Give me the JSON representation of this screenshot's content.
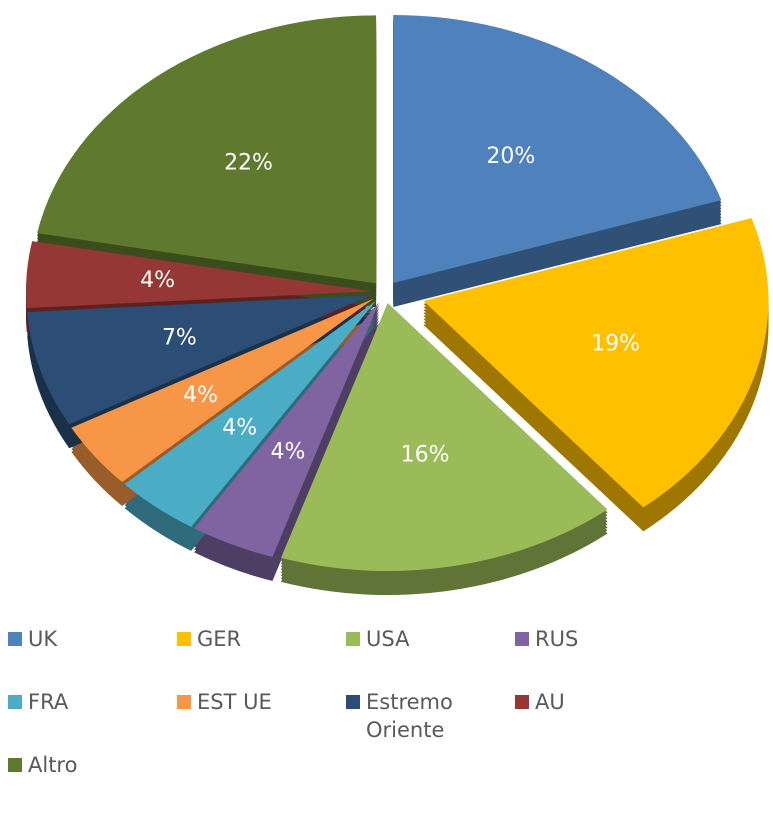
{
  "chart_data": {
    "type": "pie",
    "categories": [
      "UK",
      "GER",
      "USA",
      "RUS",
      "FRA",
      "EST UE",
      "Estremo Oriente",
      "AU",
      "Altro"
    ],
    "values": [
      20,
      19,
      16,
      4,
      4,
      4,
      7,
      4,
      22
    ],
    "value_labels": [
      "20%",
      "19%",
      "16%",
      "4%",
      "4%",
      "4%",
      "7%",
      "4%",
      "22%"
    ],
    "colors": [
      "#4f81bd",
      "#ffc000",
      "#9bbb59",
      "#8064a2",
      "#4bacc6",
      "#f79646",
      "#2c4d75",
      "#953735",
      "#5f7a2e"
    ],
    "legend": "bottom"
  }
}
